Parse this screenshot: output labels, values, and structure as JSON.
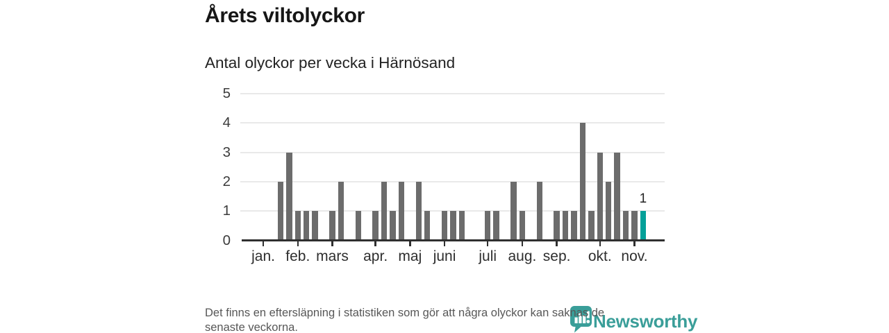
{
  "header": {
    "title": "Årets viltolyckor",
    "subtitle": "Antal olyckor per vecka i Härnösand"
  },
  "chart_data": {
    "type": "bar",
    "title": "Årets viltolyckor",
    "subtitle": "Antal olyckor per vecka i Härnösand",
    "x_unit": "week",
    "values": [
      0,
      0,
      0,
      0,
      2,
      3,
      1,
      1,
      1,
      0,
      1,
      2,
      0,
      1,
      0,
      1,
      2,
      1,
      2,
      0,
      2,
      1,
      0,
      1,
      1,
      1,
      0,
      0,
      1,
      1,
      0,
      2,
      1,
      0,
      2,
      0,
      1,
      1,
      1,
      4,
      1,
      3,
      2,
      3,
      1,
      1,
      1,
      0,
      0
    ],
    "highlight_index": 46,
    "highlight_value_label": "1",
    "months": [
      {
        "label": "jan.",
        "week_index": 2
      },
      {
        "label": "feb.",
        "week_index": 6
      },
      {
        "label": "mars",
        "week_index": 10
      },
      {
        "label": "apr.",
        "week_index": 15
      },
      {
        "label": "maj",
        "week_index": 19
      },
      {
        "label": "juni",
        "week_index": 23
      },
      {
        "label": "juli",
        "week_index": 28
      },
      {
        "label": "aug.",
        "week_index": 32
      },
      {
        "label": "sep.",
        "week_index": 36
      },
      {
        "label": "okt.",
        "week_index": 41
      },
      {
        "label": "nov.",
        "week_index": 45
      }
    ],
    "y_ticks": [
      0,
      1,
      2,
      3,
      4,
      5
    ],
    "ylim": [
      0,
      5
    ],
    "grid": true,
    "legend_position": "none",
    "colors": {
      "bar": "#6c6c6c",
      "highlight": "#04a099",
      "gridline": "#e9e9e9",
      "axis": "#2f2f2f"
    }
  },
  "footer": {
    "lines": [
      "Det finns en eftersläpning i statistiken som gör att några olyckor kan saknas de",
      "senaste veckorna."
    ]
  },
  "logo": {
    "text": "Newsworthy",
    "color": "#3a9e99"
  }
}
